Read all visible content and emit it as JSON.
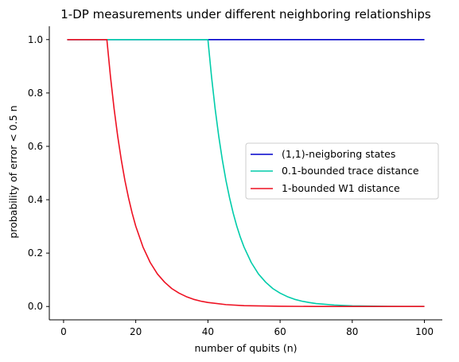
{
  "chart_data": {
    "type": "line",
    "title": "1-DP measurements under different neighboring relationships",
    "xlabel": "number of qubits (n)",
    "ylabel": "probability of error < 0.5 n",
    "xlim": [
      -3.95,
      104.95
    ],
    "ylim": [
      -0.05,
      1.05
    ],
    "xticks": [
      0,
      20,
      40,
      60,
      80,
      100
    ],
    "yticks": [
      0.0,
      0.2,
      0.4,
      0.6,
      0.8,
      1.0
    ],
    "xtick_labels": [
      "0",
      "20",
      "40",
      "60",
      "80",
      "100"
    ],
    "ytick_labels": [
      "0.0",
      "0.2",
      "0.4",
      "0.6",
      "0.8",
      "1.0"
    ],
    "grid": false,
    "legend_position": "center-right",
    "series": [
      {
        "name": "(1,1)-neigboring states",
        "color": "#0000cc",
        "x": [
          1,
          100
        ],
        "y": [
          1.0,
          1.0
        ]
      },
      {
        "name": "0.1-bounded trace distance",
        "color": "#00ccaa",
        "x": [
          1,
          10,
          20,
          30,
          40,
          41,
          42,
          43,
          44,
          45,
          46,
          47,
          48,
          49,
          50,
          52,
          54,
          56,
          58,
          60,
          62,
          64,
          66,
          68,
          70,
          75,
          80,
          90,
          100
        ],
        "y": [
          1.0,
          1.0,
          1.0,
          1.0,
          1.0,
          0.861,
          0.741,
          0.638,
          0.549,
          0.472,
          0.407,
          0.35,
          0.301,
          0.259,
          0.223,
          0.165,
          0.122,
          0.091,
          0.067,
          0.05,
          0.037,
          0.027,
          0.02,
          0.015,
          0.011,
          0.0055,
          0.0025,
          0.0005,
          0.0
        ]
      },
      {
        "name": "1-bounded W1 distance",
        "color": "#ee1122",
        "x": [
          1,
          5,
          10,
          12,
          13,
          14,
          15,
          16,
          17,
          18,
          19,
          20,
          22,
          24,
          26,
          28,
          30,
          32,
          34,
          36,
          38,
          40,
          45,
          50,
          60,
          70,
          80,
          100
        ],
        "y": [
          1.0,
          1.0,
          1.0,
          1.0,
          0.861,
          0.741,
          0.638,
          0.549,
          0.472,
          0.407,
          0.35,
          0.301,
          0.223,
          0.165,
          0.122,
          0.091,
          0.067,
          0.05,
          0.037,
          0.027,
          0.02,
          0.015,
          0.007,
          0.003,
          0.001,
          0.0,
          0.0,
          0.0
        ]
      }
    ]
  }
}
